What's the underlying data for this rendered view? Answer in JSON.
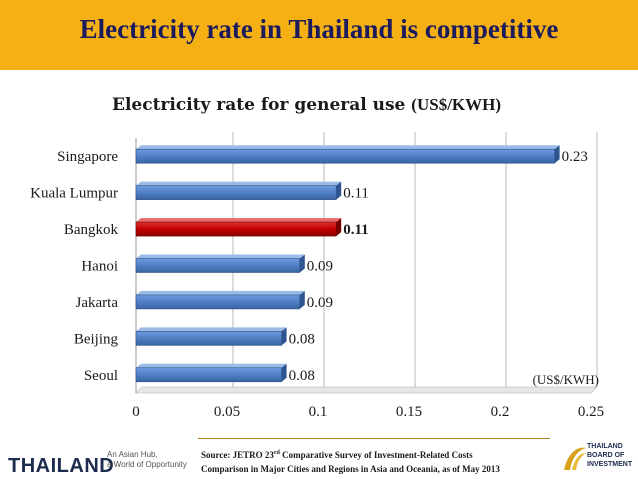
{
  "header": {
    "title": "Electricity rate in Thailand is competitive"
  },
  "chart_data": {
    "type": "bar",
    "orientation": "horizontal",
    "title": "Electricity rate for general use",
    "title_unit": "(US$/KWH)",
    "unit_note": "(US$/KWH)",
    "categories": [
      "Singapore",
      "Kuala Lumpur",
      "Bangkok",
      "Hanoi",
      "Jakarta",
      "Beijing",
      "Seoul"
    ],
    "values": [
      0.23,
      0.11,
      0.11,
      0.09,
      0.09,
      0.08,
      0.08
    ],
    "value_labels": [
      "0.23",
      "0.11",
      "0.11",
      "0.09",
      "0.09",
      "0.08",
      "0.08"
    ],
    "highlight": "Bangkok",
    "colors": {
      "default": "#4f7fc4",
      "highlight": "#c00000"
    },
    "xlim": [
      0,
      0.25
    ],
    "xticks": [
      0,
      0.05,
      0.1,
      0.15,
      0.2,
      0.25
    ],
    "xtick_labels": [
      "0",
      "0.05",
      "0.1",
      "0.15",
      "0.2",
      "0.25"
    ],
    "grid": true
  },
  "footer": {
    "logo": "THAILAND",
    "tagline_1": "An Asian Hub,",
    "tagline_2": "a World of Opportunity",
    "source_prefix": "Source: JETRO 23",
    "source_sup": "rd",
    "source_rest": " Comparative Survey of Investment-Related Costs",
    "source_line2": "Comparison in Major Cities and Regions in Asia and Oceania, as of May 2013",
    "boi_1": "THAILAND",
    "boi_2": "BOARD OF",
    "boi_3": "INVESTMENT"
  }
}
